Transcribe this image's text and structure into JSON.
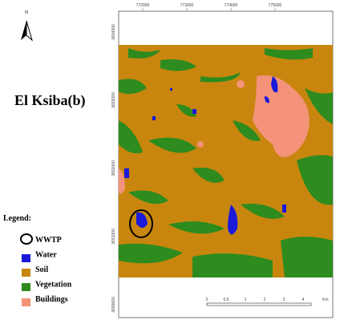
{
  "north": "N",
  "title": "El Ksiba(b)",
  "legend": {
    "title": "Legend:",
    "items": [
      "WWTP",
      "Water",
      "Soil",
      "Vegetation",
      "Buildings"
    ]
  },
  "axes": {
    "top": [
      "772000",
      "773000",
      "774000",
      "775000"
    ],
    "left": [
      "3654000",
      "3653000",
      "3652000",
      "3651000",
      "3650000"
    ]
  },
  "scale": {
    "labels": [
      "0",
      "0.5",
      "1",
      "2",
      "3",
      "4"
    ],
    "unit": "Km"
  }
}
